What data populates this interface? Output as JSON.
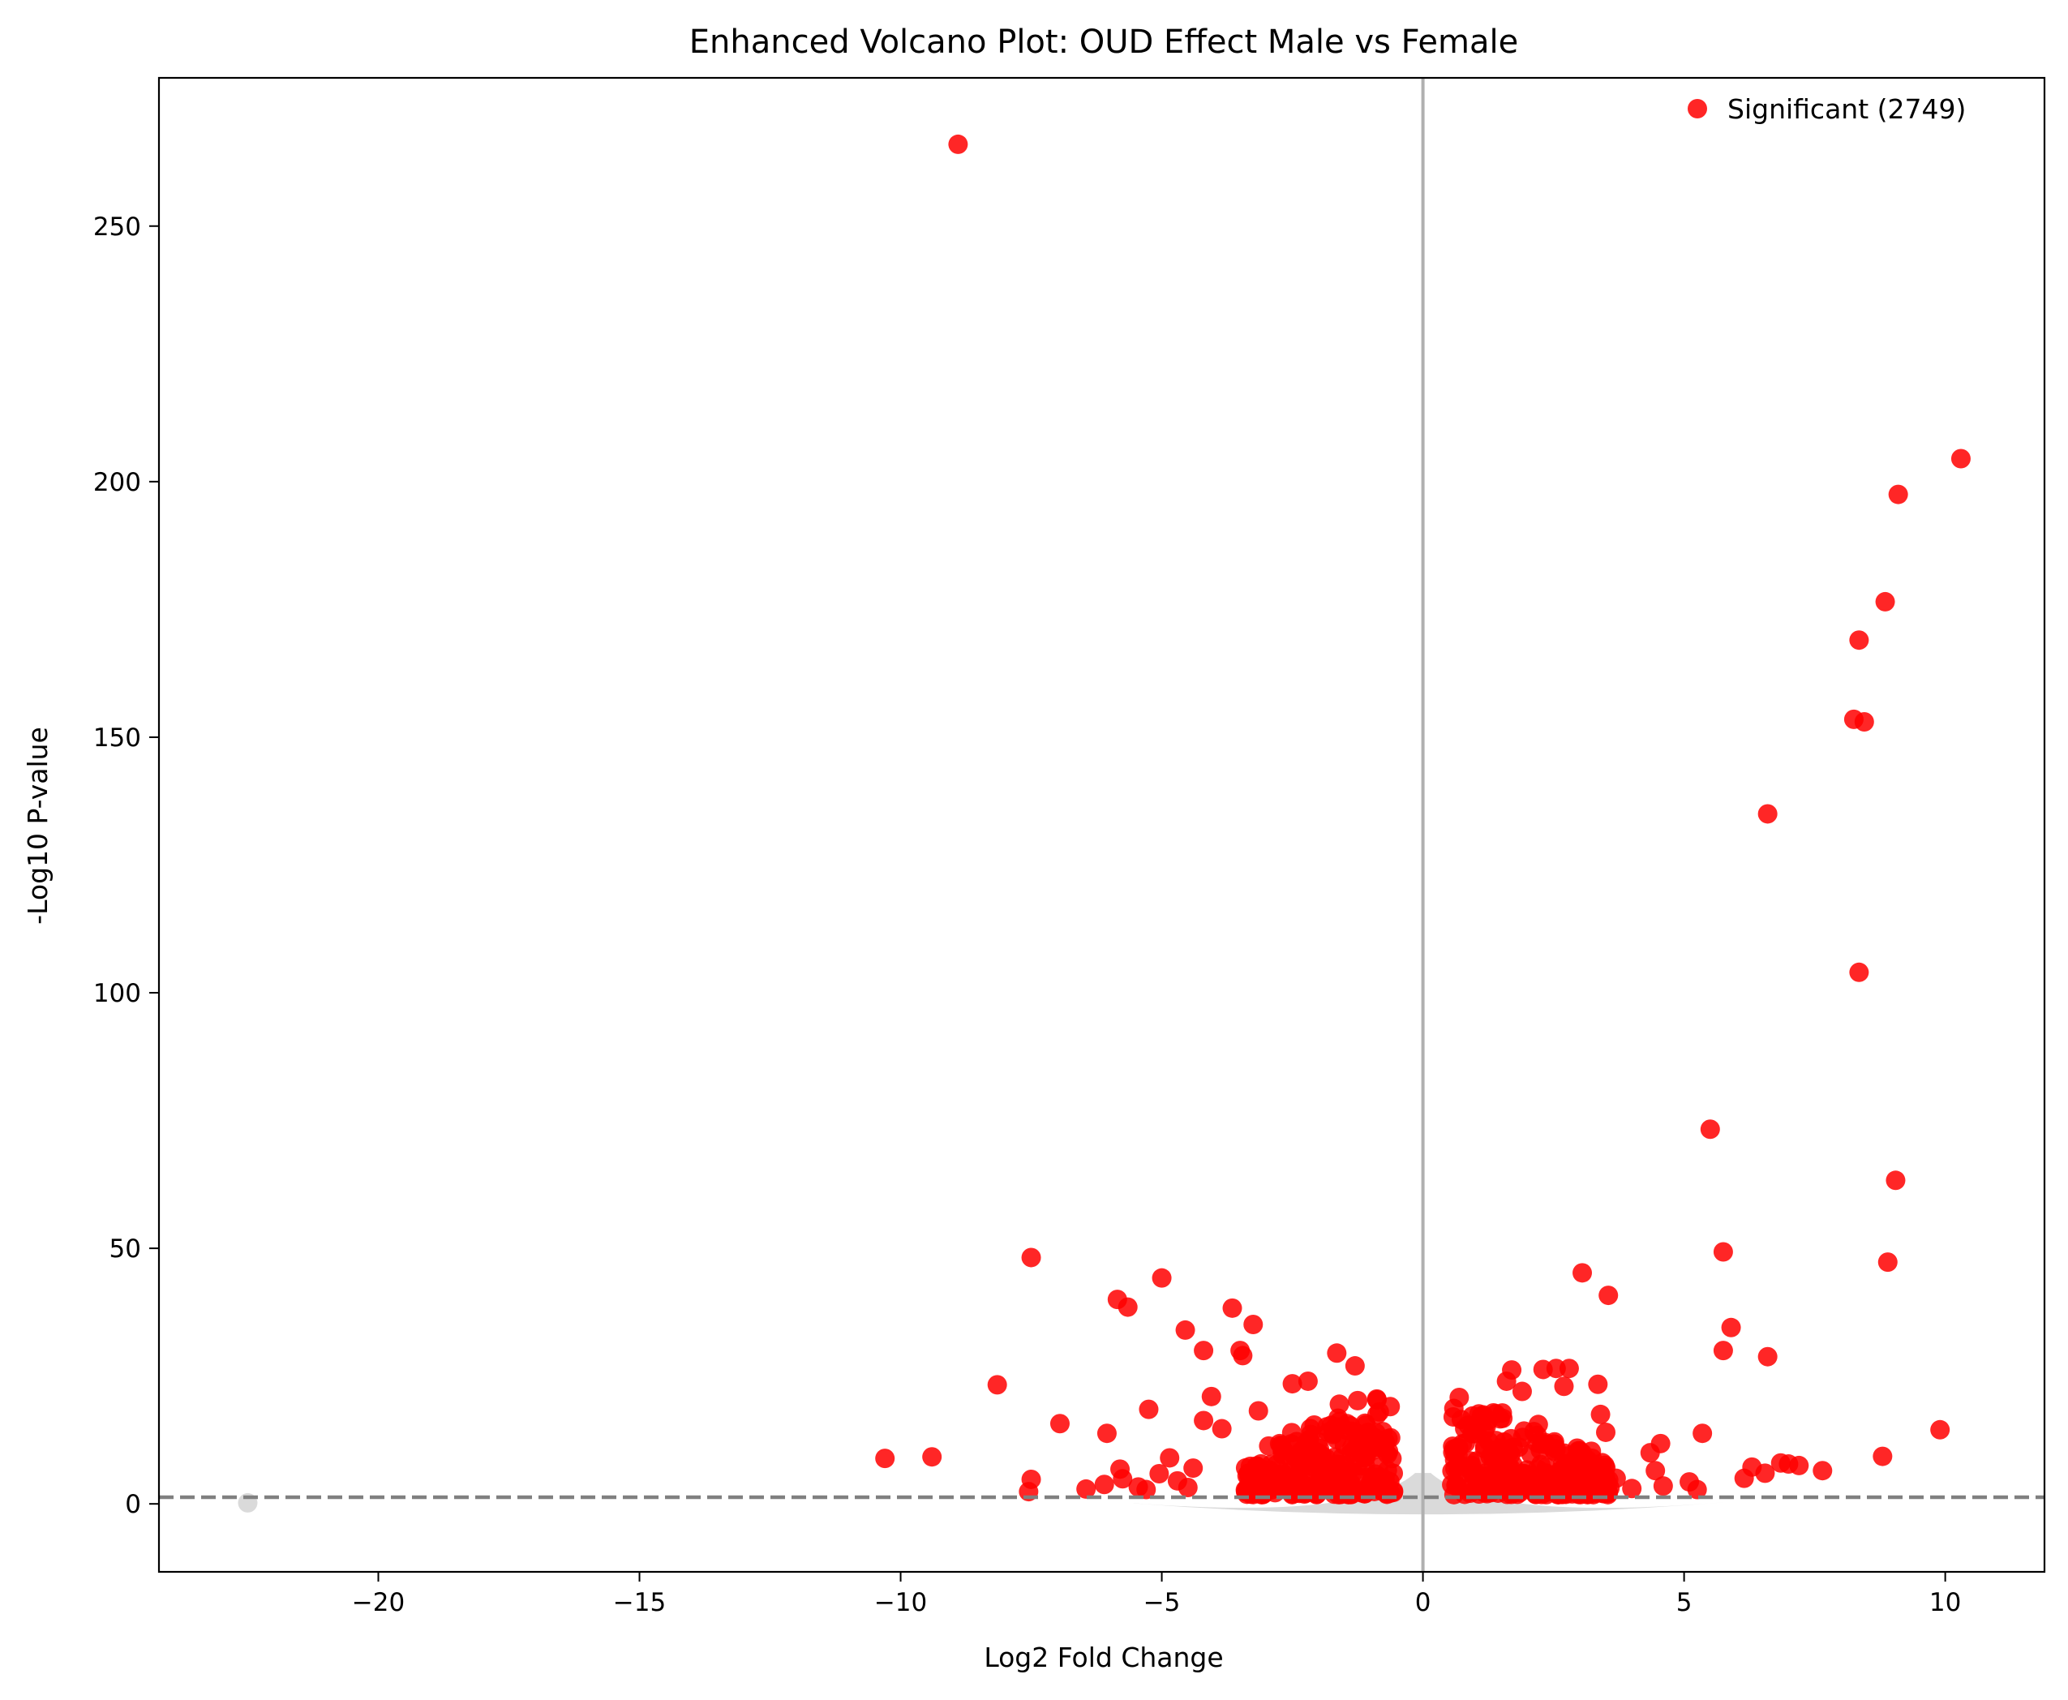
{
  "chart_data": {
    "type": "scatter",
    "title": "Enhanced Volcano Plot: OUD Effect Male vs Female",
    "xlabel": "Log2 Fold Change",
    "ylabel": "-Log10 P-value",
    "xlim": [
      -24.2,
      11.9
    ],
    "ylim": [
      -13.3,
      279
    ],
    "xticks": [
      -20,
      -15,
      -10,
      -5,
      0,
      5,
      10
    ],
    "yticks": [
      0,
      50,
      100,
      150,
      200,
      250
    ],
    "xtick_labels": [
      "−20",
      "−15",
      "−10",
      "−5",
      "0",
      "5",
      "10"
    ],
    "ytick_labels": [
      "0",
      "50",
      "100",
      "150",
      "200",
      "250"
    ],
    "grid": false,
    "legend_position": "top-right",
    "legend": [
      "Significant (2749)"
    ],
    "threshold_y": 1.3,
    "vline_x": 0,
    "colors": {
      "significant": "#ff0000",
      "nonsignificant": "#d3d3d3",
      "threshold": "#808080",
      "vline": "#b0b0b0"
    },
    "series": [
      {
        "name": "Significant (2749)",
        "role": "significant",
        "points": [
          [
            -8.9,
            266
          ],
          [
            10.3,
            204.5
          ],
          [
            9.1,
            197.5
          ],
          [
            8.85,
            176.5
          ],
          [
            8.35,
            169
          ],
          [
            8.25,
            153.5
          ],
          [
            8.45,
            153
          ],
          [
            6.6,
            135
          ],
          [
            8.35,
            104
          ],
          [
            5.5,
            73.3
          ],
          [
            9.05,
            63.3
          ],
          [
            5.75,
            49.3
          ],
          [
            8.9,
            47.3
          ],
          [
            3.05,
            45.2
          ],
          [
            3.55,
            40.8
          ],
          [
            5.9,
            34.5
          ],
          [
            5.75,
            30
          ],
          [
            6.6,
            28.8
          ],
          [
            3.35,
            23.4
          ],
          [
            9.9,
            14.5
          ],
          [
            8.8,
            9.3
          ],
          [
            7.65,
            6.5
          ],
          [
            7.2,
            7.5
          ],
          [
            7.0,
            7.8
          ],
          [
            6.85,
            8
          ],
          [
            6.55,
            6
          ],
          [
            6.3,
            7.2
          ],
          [
            6.15,
            5
          ],
          [
            5.35,
            13.8
          ],
          [
            5.25,
            2.8
          ],
          [
            5.1,
            4.3
          ],
          [
            4.55,
            11.8
          ],
          [
            4.35,
            10
          ],
          [
            4.45,
            6.5
          ],
          [
            4.6,
            3.5
          ],
          [
            4.0,
            3
          ],
          [
            3.7,
            5
          ],
          [
            3.4,
            17.5
          ],
          [
            3.5,
            14
          ],
          [
            2.8,
            26.5
          ],
          [
            2.55,
            26.5
          ],
          [
            2.3,
            26.3
          ],
          [
            1.7,
            26.2
          ],
          [
            1.6,
            24
          ],
          [
            1.9,
            22
          ],
          [
            2.7,
            23
          ],
          [
            1.35,
            17.8
          ],
          [
            1.1,
            16
          ],
          [
            0.95,
            17.2
          ],
          [
            -7.5,
            48.2
          ],
          [
            -5.0,
            44.2
          ],
          [
            -5.85,
            40
          ],
          [
            -5.65,
            38.5
          ],
          [
            -3.65,
            38.3
          ],
          [
            -3.25,
            35.1
          ],
          [
            -4.55,
            34
          ],
          [
            -4.2,
            30
          ],
          [
            -3.5,
            30
          ],
          [
            -3.45,
            29
          ],
          [
            -1.65,
            29.5
          ],
          [
            -1.3,
            27
          ],
          [
            -8.15,
            23.3
          ],
          [
            -2.5,
            23.5
          ],
          [
            -2.2,
            24
          ],
          [
            -4.05,
            21
          ],
          [
            -1.25,
            20.2
          ],
          [
            -1.6,
            19.5
          ],
          [
            -5.25,
            18.5
          ],
          [
            -3.15,
            18.2
          ],
          [
            -6.95,
            15.7
          ],
          [
            -6.05,
            13.8
          ],
          [
            -4.2,
            16.3
          ],
          [
            -3.85,
            14.7
          ],
          [
            -10.3,
            8.9
          ],
          [
            -9.4,
            9.2
          ],
          [
            -7.5,
            4.8
          ],
          [
            -7.55,
            2.4
          ],
          [
            -6.45,
            2.9
          ],
          [
            -6.1,
            3.8
          ],
          [
            -5.8,
            6.8
          ],
          [
            -5.75,
            4.9
          ],
          [
            -5.45,
            3.3
          ],
          [
            -5.3,
            2.8
          ],
          [
            -5.05,
            5.9
          ],
          [
            -4.85,
            9
          ],
          [
            -4.7,
            4.5
          ],
          [
            -4.5,
            3.2
          ],
          [
            -4.4,
            7
          ]
        ]
      },
      {
        "name": "",
        "role": "nonsignificant",
        "points": [
          [
            -22.5,
            0.2
          ]
        ]
      }
    ]
  }
}
